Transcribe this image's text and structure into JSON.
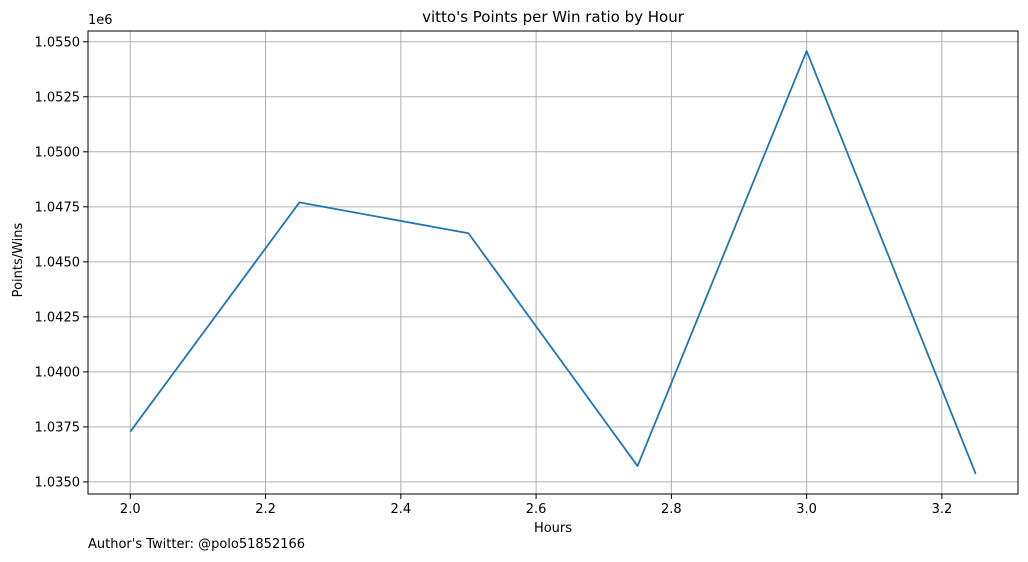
{
  "chart_data": {
    "type": "line",
    "title": "vitto's Points per Win ratio by Hour",
    "xlabel": "Hours",
    "ylabel": "Points/Wins",
    "y_offset_label": "1e6",
    "x": [
      2.0,
      2.25,
      2.5,
      2.75,
      3.0,
      3.25
    ],
    "series": [
      {
        "values": [
          1.03728,
          1.0477,
          1.0463,
          1.03572,
          1.05458,
          1.03536
        ],
        "color": "#1f77b4"
      }
    ],
    "xlim": [
      1.9375,
      3.3125
    ],
    "ylim": [
      1.03445,
      1.05549
    ],
    "x_ticks": [
      {
        "value": 2.0,
        "label": "2.0"
      },
      {
        "value": 2.2,
        "label": "2.2"
      },
      {
        "value": 2.4,
        "label": "2.4"
      },
      {
        "value": 2.6,
        "label": "2.6"
      },
      {
        "value": 2.8,
        "label": "2.8"
      },
      {
        "value": 3.0,
        "label": "3.0"
      },
      {
        "value": 3.2,
        "label": "3.2"
      }
    ],
    "y_ticks": [
      {
        "value": 1.035,
        "label": "1.0350"
      },
      {
        "value": 1.0375,
        "label": "1.0375"
      },
      {
        "value": 1.04,
        "label": "1.0400"
      },
      {
        "value": 1.0425,
        "label": "1.0425"
      },
      {
        "value": 1.045,
        "label": "1.0450"
      },
      {
        "value": 1.0475,
        "label": "1.0475"
      },
      {
        "value": 1.05,
        "label": "1.0500"
      },
      {
        "value": 1.0525,
        "label": "1.0525"
      },
      {
        "value": 1.055,
        "label": "1.0550"
      }
    ],
    "grid": true,
    "grid_color": "#b0b0b0"
  },
  "footer": {
    "text": "Author's Twitter: @polo51852166"
  }
}
